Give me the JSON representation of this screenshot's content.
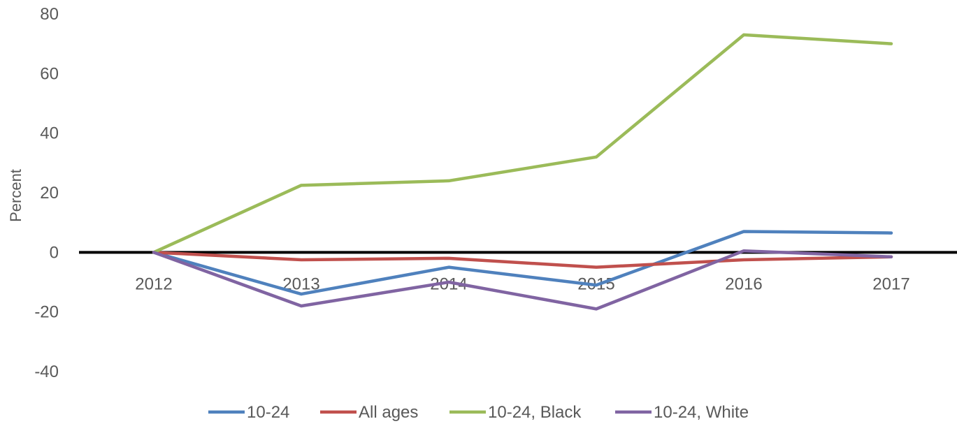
{
  "chart_data": {
    "type": "line",
    "title": "",
    "xlabel": "",
    "ylabel": "Percent",
    "ylim": [
      -40,
      80
    ],
    "yticks": [
      -40,
      -20,
      0,
      20,
      40,
      60,
      80
    ],
    "y_tick_labels": [
      "-40",
      "-20",
      "0",
      "20",
      "40",
      "60",
      "80"
    ],
    "categories": [
      "2012",
      "2013",
      "2014",
      "2015",
      "2016",
      "2017"
    ],
    "grid": false,
    "legend_position": "bottom",
    "series": [
      {
        "name": "10-24",
        "color": "#4F81BD",
        "values": [
          0,
          -14,
          -5,
          -11,
          7,
          6.5
        ]
      },
      {
        "name": "All ages",
        "color": "#C0504D",
        "values": [
          0,
          -2.5,
          -2,
          -5,
          -2.5,
          -1.5
        ]
      },
      {
        "name": "10-24, Black",
        "color": "#9BBB59",
        "values": [
          0,
          22.5,
          24,
          32,
          73,
          70
        ]
      },
      {
        "name": "10-24, White",
        "color": "#8064A2",
        "values": [
          0,
          -18,
          -10,
          -19,
          0.5,
          -1.5
        ]
      }
    ]
  }
}
